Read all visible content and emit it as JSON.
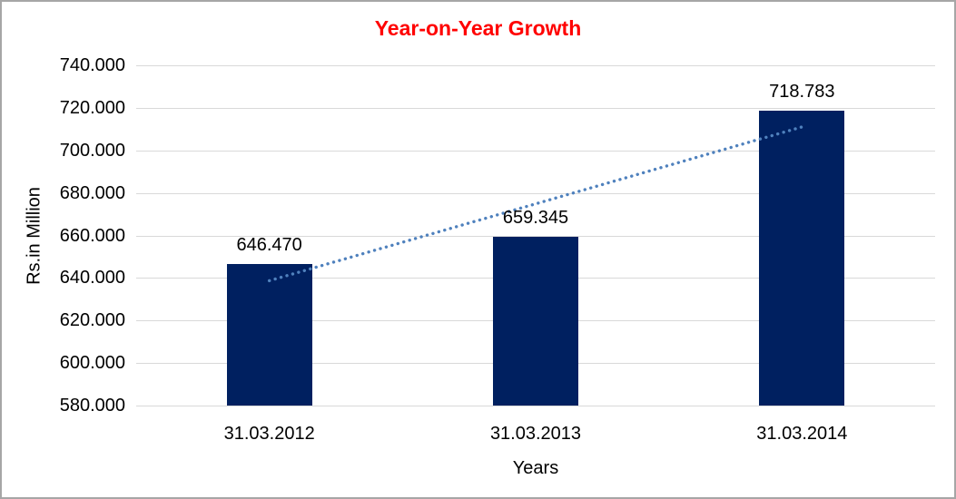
{
  "window": {
    "background": "#ffffff",
    "border_color": "#a6a6a6"
  },
  "chart_data": {
    "type": "bar",
    "title": "Year-on-Year Growth",
    "title_color": "#ff0000",
    "xlabel": "Years",
    "ylabel": "Rs.in Million",
    "categories": [
      "31.03.2012",
      "31.03.2013",
      "31.03.2014"
    ],
    "values": [
      646.47,
      659.345,
      718.783
    ],
    "data_labels": [
      "646.470",
      "659.345",
      "718.783"
    ],
    "ylim": [
      580,
      740
    ],
    "ytick_values": [
      580,
      600,
      620,
      640,
      660,
      680,
      700,
      720,
      740
    ],
    "ytick_labels": [
      "580.000",
      "600.000",
      "620.000",
      "640.000",
      "660.000",
      "680.000",
      "700.000",
      "720.000",
      "740.000"
    ],
    "bar_color": "#002060",
    "gridline_color": "#d9d9d9",
    "grid": true,
    "legend": false,
    "trendline": {
      "type": "linear",
      "style": "dotted",
      "color": "#4f81bd"
    }
  }
}
